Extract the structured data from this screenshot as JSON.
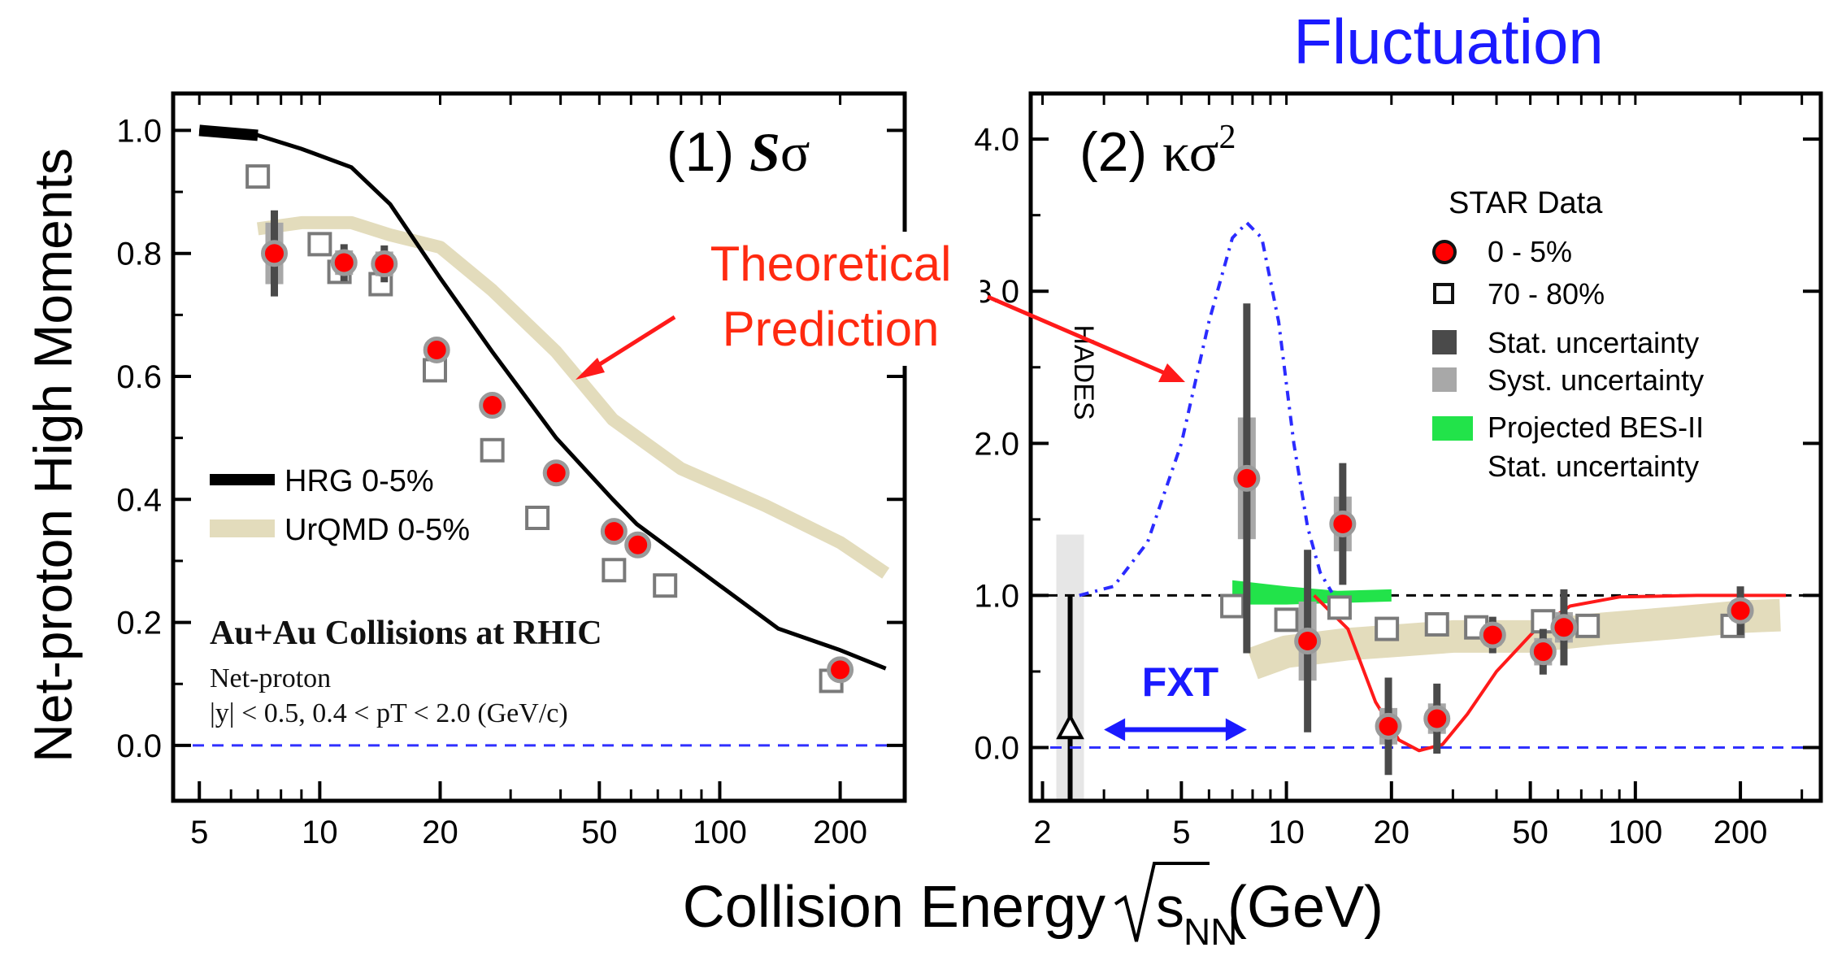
{
  "figure": {
    "top_title": "Fluctuation",
    "y_label": "Net-proton High Moments",
    "x_label_main": "Collision Energy",
    "x_label_sub": "NN",
    "x_label_unit": "(GeV)",
    "annotation_line1": "Theoretical",
    "annotation_line2": "Prediction"
  },
  "colors": {
    "star_central_fill": "#ff0000",
    "star_central_stroke": "#9a9a9a",
    "peripheral": "#7a7a7a",
    "hrg_line": "#000000",
    "urqmd_band": "#e3dcbc",
    "baseline": "#3030ff",
    "theory_dashdot": "#2b2bff",
    "theory_curve": "#ff1a1a",
    "bes2_band": "#22e34a",
    "stat_err": "#4a4a4a",
    "syst_err": "#a8a8a8",
    "arrow_red": "#ff1a1a",
    "fxt_blue": "#1a1aff",
    "annotation": "#ff2a10"
  },
  "chart_data": [
    {
      "id": "panel1",
      "type": "scatter",
      "panel_label": "(1) Sσ",
      "x_scale": "log",
      "xlim": [
        4.3,
        290
      ],
      "ylim": [
        -0.09,
        1.06
      ],
      "xticks": [
        5,
        10,
        20,
        50,
        100,
        200
      ],
      "xtick_labels": [
        "5",
        "10",
        "20",
        "50",
        "100",
        "200"
      ],
      "yticks": [
        0,
        0.2,
        0.4,
        0.6,
        0.8,
        1.0
      ],
      "ytick_labels": [
        "0.0",
        "0.2",
        "0.4",
        "0.6",
        "0.8",
        "1.0"
      ],
      "baseline_y": 0,
      "series": [
        {
          "name": "0-5% (STAR)",
          "kind": "circle",
          "points": [
            {
              "x": 7.7,
              "y": 0.8,
              "stat": 0.07,
              "syst": 0.05
            },
            {
              "x": 11.5,
              "y": 0.785,
              "stat": 0.03,
              "syst": 0.02
            },
            {
              "x": 14.5,
              "y": 0.783,
              "stat": 0.03,
              "syst": 0.02
            },
            {
              "x": 19.6,
              "y": 0.643,
              "stat": 0.015,
              "syst": 0.012
            },
            {
              "x": 27,
              "y": 0.553,
              "stat": 0.012,
              "syst": 0.01
            },
            {
              "x": 39,
              "y": 0.443,
              "stat": 0.01,
              "syst": 0.008
            },
            {
              "x": 54.4,
              "y": 0.348,
              "stat": 0.01,
              "syst": 0.008
            },
            {
              "x": 62.4,
              "y": 0.326,
              "stat": 0.01,
              "syst": 0.008
            },
            {
              "x": 200,
              "y": 0.123,
              "stat": 0.008,
              "syst": 0.006
            }
          ]
        },
        {
          "name": "70-80% (STAR)",
          "kind": "square",
          "points": [
            {
              "x": 7.0,
              "y": 0.925
            },
            {
              "x": 10.0,
              "y": 0.815
            },
            {
              "x": 11.2,
              "y": 0.77
            },
            {
              "x": 14.2,
              "y": 0.75
            },
            {
              "x": 19.4,
              "y": 0.61
            },
            {
              "x": 27,
              "y": 0.48
            },
            {
              "x": 35,
              "y": 0.37
            },
            {
              "x": 54.4,
              "y": 0.285
            },
            {
              "x": 73,
              "y": 0.26
            },
            {
              "x": 190,
              "y": 0.105
            }
          ]
        },
        {
          "name": "HRG 0-5%",
          "kind": "line",
          "points": [
            [
              5,
              1.0
            ],
            [
              7,
              0.992
            ],
            [
              9,
              0.97
            ],
            [
              12,
              0.94
            ],
            [
              15,
              0.88
            ],
            [
              20,
              0.76
            ],
            [
              27,
              0.64
            ],
            [
              39,
              0.5
            ],
            [
              54,
              0.4
            ],
            [
              62,
              0.36
            ],
            [
              100,
              0.26
            ],
            [
              140,
              0.19
            ],
            [
              200,
              0.155
            ],
            [
              260,
              0.125
            ]
          ]
        },
        {
          "name": "UrQMD 0-5%",
          "kind": "band",
          "points": [
            [
              7,
              0.84
            ],
            [
              9,
              0.85
            ],
            [
              12,
              0.85
            ],
            [
              15,
              0.83
            ],
            [
              20,
              0.81
            ],
            [
              27,
              0.74
            ],
            [
              39,
              0.64
            ],
            [
              54,
              0.53
            ],
            [
              80,
              0.45
            ],
            [
              130,
              0.39
            ],
            [
              200,
              0.33
            ],
            [
              260,
              0.28
            ]
          ]
        }
      ],
      "legend": [
        {
          "label": "HRG 0-5%",
          "kind": "line"
        },
        {
          "label": "UrQMD 0-5%",
          "kind": "band"
        }
      ],
      "note_title": "Au+Au Collisions at RHIC",
      "note_line1": "Net-proton",
      "note_line2": "|y| < 0.5, 0.4 < pT < 2.0 (GeV/c)"
    },
    {
      "id": "panel2",
      "type": "scatter",
      "panel_label": "(2) κσ²",
      "x_scale": "log",
      "xlim": [
        1.85,
        340
      ],
      "ylim": [
        -0.35,
        4.3
      ],
      "xticks": [
        2,
        5,
        10,
        20,
        50,
        100,
        200
      ],
      "xtick_labels": [
        "2",
        "5",
        "10",
        "20",
        "50",
        "100",
        "200"
      ],
      "yticks": [
        0,
        1,
        2,
        3,
        4
      ],
      "ytick_labels": [
        "0.0",
        "1.0",
        "2.0",
        "3.0",
        "4.0"
      ],
      "baseline_y": 0,
      "unity_y": 1,
      "series": [
        {
          "name": "0-5% (STAR)",
          "kind": "circle",
          "points": [
            {
              "x": 7.7,
              "y": 1.77,
              "stat": 1.15,
              "syst": 0.4
            },
            {
              "x": 11.5,
              "y": 0.7,
              "stat": 0.6,
              "syst": 0.26
            },
            {
              "x": 14.5,
              "y": 1.47,
              "stat": 0.4,
              "syst": 0.18
            },
            {
              "x": 19.6,
              "y": 0.14,
              "stat": 0.32,
              "syst": 0.12
            },
            {
              "x": 27,
              "y": 0.19,
              "stat": 0.23,
              "syst": 0.1
            },
            {
              "x": 39,
              "y": 0.74,
              "stat": 0.12,
              "syst": 0.07
            },
            {
              "x": 54.4,
              "y": 0.63,
              "stat": 0.15,
              "syst": 0.09
            },
            {
              "x": 62.4,
              "y": 0.79,
              "stat": 0.25,
              "syst": 0.1
            },
            {
              "x": 200,
              "y": 0.9,
              "stat": 0.16,
              "syst": 0.07
            }
          ]
        },
        {
          "name": "70-80% (STAR)",
          "kind": "square",
          "points": [
            {
              "x": 7.0,
              "y": 0.93
            },
            {
              "x": 10.0,
              "y": 0.84
            },
            {
              "x": 14.2,
              "y": 0.92
            },
            {
              "x": 19.4,
              "y": 0.78
            },
            {
              "x": 27,
              "y": 0.81
            },
            {
              "x": 35,
              "y": 0.79
            },
            {
              "x": 54.4,
              "y": 0.83
            },
            {
              "x": 73,
              "y": 0.8
            },
            {
              "x": 190,
              "y": 0.8
            }
          ]
        },
        {
          "name": "HADES",
          "kind": "vertical-range",
          "x": 2.4,
          "value": 0.13,
          "range": [
            -0.35,
            1.0
          ],
          "band": [
            -0.35,
            1.4
          ]
        },
        {
          "name": "Projected BES-II Stat. uncertainty",
          "kind": "band-green",
          "points": [
            [
              7,
              1.02,
              0.08
            ],
            [
              10,
              1.0,
              0.06
            ],
            [
              14,
              0.99,
              0.04
            ],
            [
              20,
              1.0,
              0.04
            ]
          ]
        },
        {
          "name": "UrQMD 0-5%",
          "kind": "band",
          "points": [
            [
              8,
              0.55
            ],
            [
              10,
              0.63
            ],
            [
              15,
              0.68
            ],
            [
              20,
              0.7
            ],
            [
              30,
              0.73
            ],
            [
              50,
              0.73
            ],
            [
              80,
              0.78
            ],
            [
              130,
              0.82
            ],
            [
              200,
              0.86
            ],
            [
              260,
              0.87
            ]
          ]
        },
        {
          "name": "Theory peak (dash-dot)",
          "kind": "dashdot",
          "points": [
            [
              2.55,
              1.0
            ],
            [
              3.2,
              1.06
            ],
            [
              4.0,
              1.35
            ],
            [
              5.0,
              2.0
            ],
            [
              6.0,
              2.8
            ],
            [
              7.0,
              3.35
            ],
            [
              7.7,
              3.45
            ],
            [
              8.5,
              3.35
            ],
            [
              9.5,
              2.8
            ],
            [
              10.5,
              2.0
            ],
            [
              11.5,
              1.45
            ],
            [
              12.5,
              1.15
            ],
            [
              13.5,
              1.02
            ]
          ]
        },
        {
          "name": "Theory dip (solid)",
          "kind": "curve",
          "points": [
            [
              12.0,
              1.0
            ],
            [
              15,
              0.78
            ],
            [
              18,
              0.3
            ],
            [
              21,
              0.05
            ],
            [
              24,
              -0.02
            ],
            [
              28,
              0.02
            ],
            [
              33,
              0.22
            ],
            [
              40,
              0.5
            ],
            [
              52,
              0.78
            ],
            [
              65,
              0.93
            ],
            [
              90,
              0.99
            ],
            [
              150,
              1.0
            ],
            [
              270,
              1.0
            ]
          ]
        }
      ],
      "legend_title": "STAR Data",
      "legend": [
        {
          "label": "0 - 5%",
          "kind": "circle"
        },
        {
          "label": "70 - 80%",
          "kind": "square"
        },
        {
          "label": "Stat. uncertainty",
          "kind": "stat"
        },
        {
          "label": "Syst. uncertainty",
          "kind": "syst"
        },
        {
          "label": "Projected BES-II",
          "label2": "Stat. uncertainty",
          "kind": "green"
        }
      ],
      "hades_label": "HADES",
      "fxt_label": "FXT",
      "fxt_range": [
        3.0,
        7.7
      ],
      "fxt_value": 0.0
    }
  ]
}
